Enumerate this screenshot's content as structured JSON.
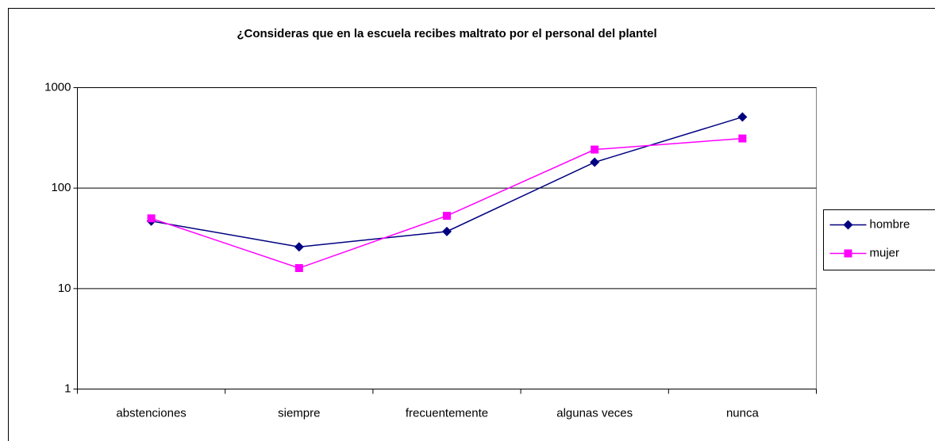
{
  "chart_data": {
    "type": "line",
    "title": "¿Consideras que en la escuela recibes maltrato por el personal del plantel",
    "categories": [
      "abstenciones",
      "siempre",
      "frecuentemente",
      "algunas veces",
      "nunca"
    ],
    "series": [
      {
        "name": "hombre",
        "color": "#000080",
        "marker": "diamond",
        "values": [
          47,
          26,
          37,
          181,
          510
        ]
      },
      {
        "name": "mujer",
        "color": "#ff00ff",
        "marker": "square",
        "values": [
          50,
          16,
          53,
          242,
          312
        ]
      }
    ],
    "log_scale": true,
    "ylim": [
      1,
      1000
    ],
    "yticks": [
      1,
      10,
      100,
      1000
    ],
    "grid": true,
    "legend": "right"
  }
}
